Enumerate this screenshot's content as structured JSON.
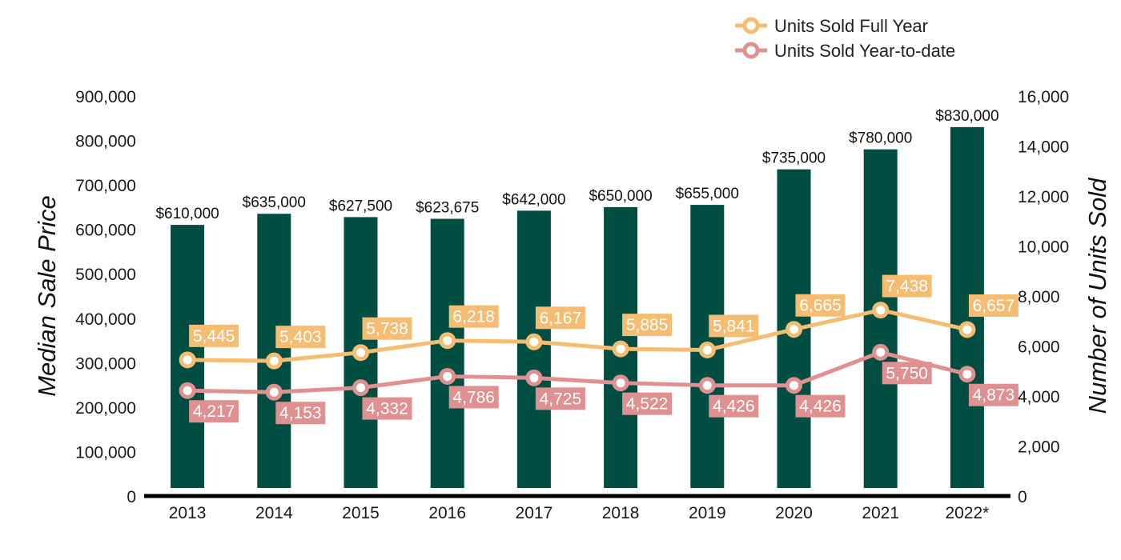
{
  "chart_data": {
    "type": "bar",
    "title": "",
    "categories": [
      "2013",
      "2014",
      "2015",
      "2016",
      "2017",
      "2018",
      "2019",
      "2020",
      "2021",
      "2022*"
    ],
    "bars": {
      "values": [
        610000,
        635000,
        627500,
        623675,
        642000,
        650000,
        655000,
        735000,
        780000,
        830000
      ],
      "labels": [
        "$610,000",
        "$635,000",
        "$627,500",
        "$623,675",
        "$642,000",
        "$650,000",
        "$655,000",
        "$735,000",
        "$780,000",
        "$830,000"
      ],
      "color": "#004d42"
    },
    "series": [
      {
        "name": "Units Sold Full Year",
        "type": "line",
        "axis": "right",
        "color": "#f5bd73",
        "values": [
          5445,
          5403,
          5738,
          6218,
          6167,
          5885,
          5841,
          6665,
          7438,
          6657
        ],
        "labels": [
          "5,445",
          "5,403",
          "5,738",
          "6,218",
          "6,167",
          "5,885",
          "5,841",
          "6,665",
          "7,438",
          "6,657"
        ]
      },
      {
        "name": "Units Sold Year-to-date",
        "type": "line",
        "axis": "right",
        "color": "#df9090",
        "values": [
          4217,
          4153,
          4332,
          4786,
          4725,
          4522,
          4426,
          4426,
          5750,
          4873
        ],
        "labels": [
          "4,217",
          "4,153",
          "4,332",
          "4,786",
          "4,725",
          "4,522",
          "4,426",
          "4,426",
          "5,750",
          "4,873"
        ]
      }
    ],
    "ylabel": "Median Sale Price",
    "ylabel_right": "Number of Units Sold",
    "ylim": [
      0,
      900000
    ],
    "ylim_right": [
      0,
      16000
    ],
    "yticks": [
      "0",
      "100,000",
      "200,000",
      "300,000",
      "400,000",
      "500,000",
      "600,000",
      "700,000",
      "800,000",
      "900,000"
    ],
    "yticks_right": [
      "0",
      "2,000",
      "4,000",
      "6,000",
      "8,000",
      "10,000",
      "12,000",
      "14,000",
      "16,000"
    ],
    "grid": false,
    "legend": "top-right",
    "axis_color": "#000000"
  }
}
